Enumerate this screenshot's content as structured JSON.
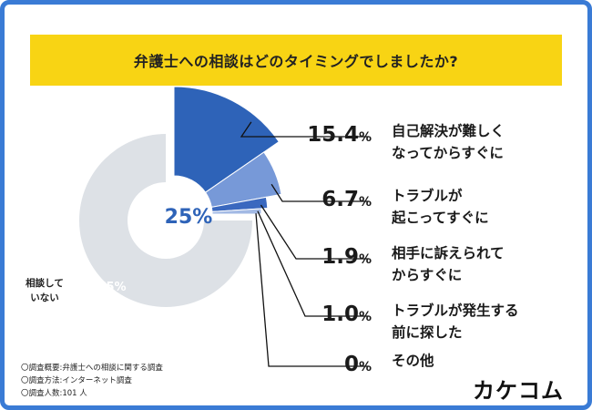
{
  "title": "弁護士への相談はどのタイミングでしましたか?",
  "notes": [
    "〇調査概要:弁護士への相談に関する調査",
    "〇調査方法:インターネット調査",
    "〇調査人数:101 人"
  ],
  "brand": "カケコム",
  "colors": {
    "border": "#3a7bd5",
    "title_bg": "#f8d414",
    "consulted_text": "#2e63b8",
    "not_consulted": "#dde1e6",
    "not_consulted_text": "#ffffff"
  },
  "chart_data": {
    "type": "pie",
    "title": "弁護士への相談はどのタイミングでしましたか?",
    "total_ring": [
      {
        "label": "",
        "value": 25,
        "display": "25%"
      },
      {
        "label": "相談していない",
        "value": 75,
        "display": "75%"
      }
    ],
    "not_consulted_label_lines": [
      "相談して",
      "いない"
    ],
    "breakdown": [
      {
        "label": "自己解決が難しくなってからすぐに",
        "label_lines": [
          "自己解決が難しく",
          "なってからすぐに"
        ],
        "value": 15.4,
        "num": "15.4",
        "unit": "%",
        "color": "#2e63b8"
      },
      {
        "label": "トラブルが起こってすぐに",
        "label_lines": [
          "トラブルが",
          "起こってすぐに"
        ],
        "value": 6.7,
        "num": "6.7",
        "unit": "%",
        "color": "#7799d8"
      },
      {
        "label": "相手に訴えられてからすぐに",
        "label_lines": [
          "相手に訴えられて",
          "からすぐに"
        ],
        "value": 1.9,
        "num": "1.9",
        "unit": "%",
        "color": "#3a68bf"
      },
      {
        "label": "トラブルが発生する前に探した",
        "label_lines": [
          "トラブルが発生する",
          "前に探した"
        ],
        "value": 1.0,
        "num": "1.0",
        "unit": "%",
        "color": "#a2b9e4"
      },
      {
        "label": "その他",
        "label_lines": [
          "その他"
        ],
        "value": 0,
        "num": "0",
        "unit": "%",
        "color": "#2e63b8"
      }
    ]
  }
}
